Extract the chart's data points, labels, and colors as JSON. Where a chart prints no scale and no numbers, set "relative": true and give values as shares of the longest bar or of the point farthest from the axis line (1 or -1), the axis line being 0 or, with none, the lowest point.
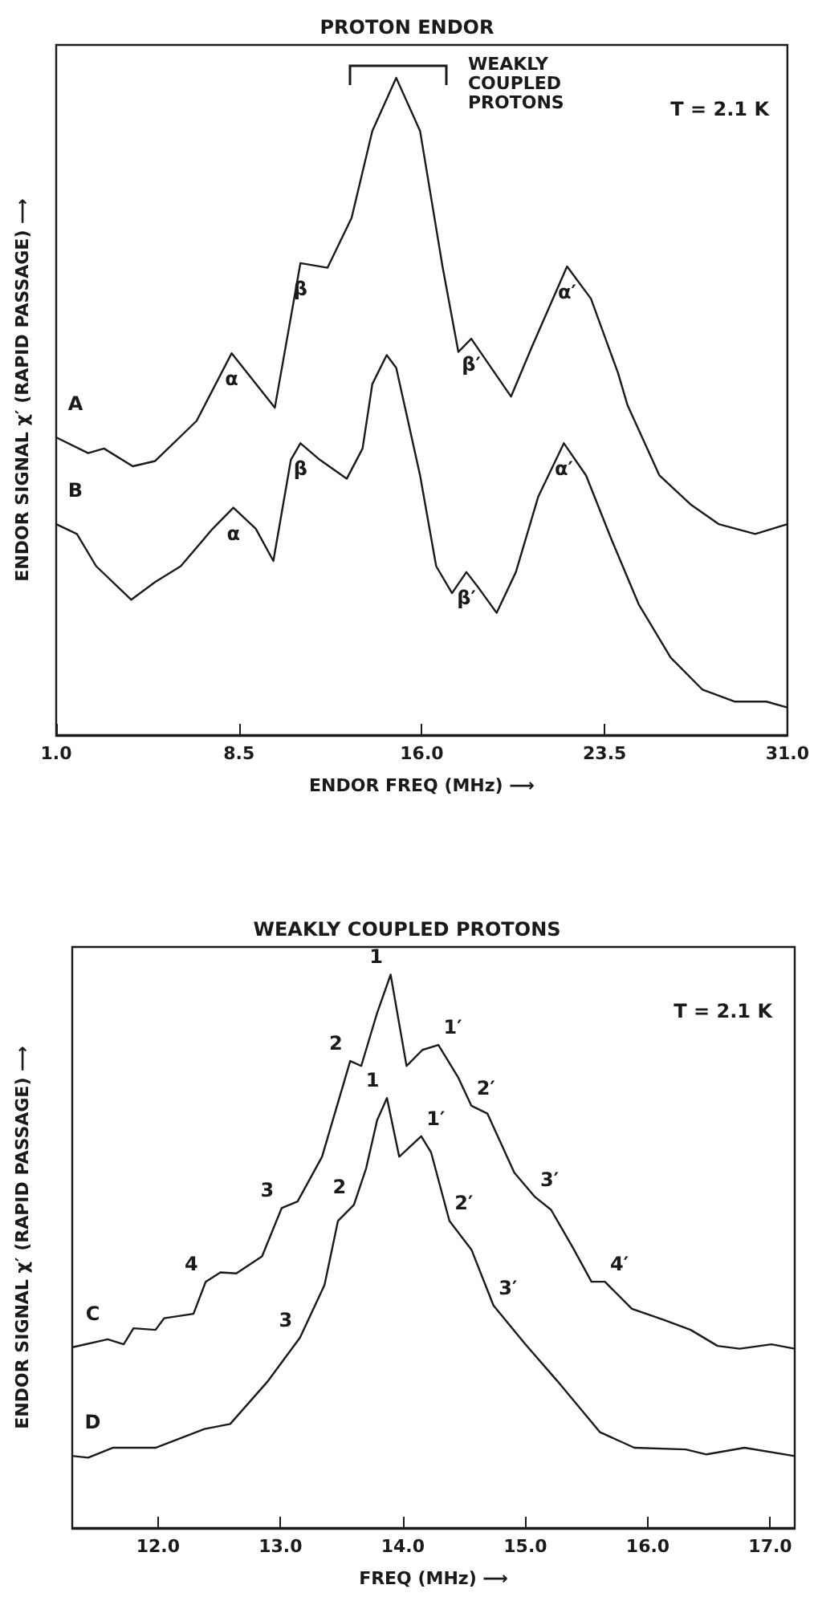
{
  "chart_data": [
    {
      "type": "line",
      "relative": true,
      "title": "PROTON ENDOR",
      "xlabel": "ENDOR FREQ (MHz) ⟶",
      "ylabel": "ENDOR SIGNAL χ′ (RAPID PASSAGE) ⟶",
      "xlim": [
        1.0,
        31.0
      ],
      "xticks": [
        {
          "value": 1.0,
          "label": "1.0"
        },
        {
          "value": 8.5,
          "label": "8.5"
        },
        {
          "value": 16.0,
          "label": "16.0"
        },
        {
          "value": 23.5,
          "label": "23.5"
        },
        {
          "value": 31.0,
          "label": "31.0"
        }
      ],
      "series": [
        {
          "name": "A",
          "color": "#1a1a1a",
          "x": [
            1.0,
            2.31,
            2.96,
            4.14,
            5.06,
            6.76,
            8.2,
            9.97,
            11.02,
            12.13,
            13.12,
            13.97,
            14.95,
            15.93,
            16.85,
            17.5,
            18.03,
            19.66,
            20.52,
            21.96,
            22.94,
            24.05,
            24.44,
            25.75,
            27.06,
            28.18,
            29.68,
            31.0
          ],
          "values": [
            0.453,
            0.429,
            0.436,
            0.409,
            0.417,
            0.478,
            0.581,
            0.498,
            0.718,
            0.711,
            0.787,
            0.919,
            1.0,
            0.919,
            0.713,
            0.583,
            0.603,
            0.515,
            0.591,
            0.713,
            0.664,
            0.551,
            0.502,
            0.395,
            0.35,
            0.321,
            0.306,
            0.321
          ]
        },
        {
          "name": "B",
          "color": "#1a1a1a",
          "x": [
            1.0,
            1.85,
            2.64,
            4.08,
            5.06,
            6.11,
            7.42,
            8.27,
            9.19,
            9.91,
            10.63,
            11.02,
            11.81,
            12.92,
            13.57,
            13.97,
            14.56,
            14.95,
            15.93,
            16.59,
            17.24,
            17.83,
            18.35,
            19.07,
            19.86,
            20.78,
            21.83,
            22.74,
            23.79,
            24.9,
            26.21,
            27.52,
            28.83,
            30.14,
            31.0
          ],
          "values": [
            0.321,
            0.306,
            0.257,
            0.206,
            0.233,
            0.257,
            0.314,
            0.346,
            0.314,
            0.265,
            0.419,
            0.444,
            0.419,
            0.39,
            0.436,
            0.534,
            0.578,
            0.559,
            0.395,
            0.257,
            0.216,
            0.248,
            0.223,
            0.186,
            0.248,
            0.363,
            0.444,
            0.395,
            0.297,
            0.199,
            0.118,
            0.069,
            0.051,
            0.051,
            0.042
          ]
        }
      ],
      "annotations": [
        {
          "text": "α",
          "x": 8.2,
          "y": 0.581
        },
        {
          "text": "β",
          "x": 11.02,
          "y": 0.718
        },
        {
          "text": "β′",
          "x": 18.03,
          "y": 0.603
        },
        {
          "text": "α′",
          "x": 21.96,
          "y": 0.713
        },
        {
          "text": "α",
          "x": 8.27,
          "y": 0.346
        },
        {
          "text": "β",
          "x": 11.02,
          "y": 0.444
        },
        {
          "text": "β′",
          "x": 17.83,
          "y": 0.248
        },
        {
          "text": "α′",
          "x": 21.83,
          "y": 0.444
        },
        "WEAKLY COUPLED PROTONS",
        "T = 2.1 K"
      ]
    },
    {
      "type": "line",
      "relative": true,
      "title": "WEAKLY COUPLED PROTONS",
      "xlabel": "FREQ (MHz) ⟶",
      "ylabel": "ENDOR SIGNAL χ′ (RAPID PASSAGE) ⟶",
      "xlim": [
        11.3,
        17.2
      ],
      "xticks": [
        {
          "value": 12.0,
          "label": "12.0"
        },
        {
          "value": 13.0,
          "label": "13.0"
        },
        {
          "value": 14.0,
          "label": "14.0"
        },
        {
          "value": 15.0,
          "label": "15.0"
        },
        {
          "value": 16.0,
          "label": "16.0"
        },
        {
          "value": 17.0,
          "label": "17.0"
        }
      ],
      "series": [
        {
          "name": "C",
          "color": "#1a1a1a",
          "x": [
            11.31,
            11.59,
            11.72,
            11.8,
            11.98,
            12.05,
            12.29,
            12.39,
            12.51,
            12.64,
            12.85,
            13.01,
            13.14,
            13.34,
            13.57,
            13.66,
            13.79,
            13.9,
            14.03,
            14.16,
            14.29,
            14.45,
            14.56,
            14.69,
            14.91,
            15.08,
            15.21,
            15.39,
            15.54,
            15.65,
            15.87,
            16.13,
            16.35,
            16.57,
            16.75,
            17.01,
            17.2
          ],
          "values": [
            0.327,
            0.341,
            0.332,
            0.361,
            0.358,
            0.379,
            0.387,
            0.445,
            0.462,
            0.46,
            0.491,
            0.578,
            0.59,
            0.671,
            0.844,
            0.835,
            0.931,
            1.0,
            0.835,
            0.864,
            0.873,
            0.815,
            0.763,
            0.749,
            0.642,
            0.598,
            0.575,
            0.506,
            0.445,
            0.445,
            0.396,
            0.376,
            0.358,
            0.329,
            0.324,
            0.332,
            0.324
          ]
        },
        {
          "name": "D",
          "color": "#1a1a1a",
          "x": [
            11.31,
            11.43,
            11.63,
            11.98,
            12.38,
            12.59,
            12.9,
            13.16,
            13.36,
            13.47,
            13.6,
            13.7,
            13.79,
            13.87,
            13.97,
            14.15,
            14.23,
            14.38,
            14.56,
            14.74,
            15.0,
            15.26,
            15.61,
            15.89,
            16.31,
            16.48,
            16.79,
            17.2
          ],
          "values": [
            0.13,
            0.127,
            0.145,
            0.145,
            0.179,
            0.188,
            0.266,
            0.344,
            0.439,
            0.555,
            0.584,
            0.65,
            0.737,
            0.777,
            0.671,
            0.708,
            0.679,
            0.555,
            0.503,
            0.402,
            0.332,
            0.266,
            0.173,
            0.145,
            0.142,
            0.133,
            0.145,
            0.13
          ]
        }
      ],
      "annotations": [
        {
          "text": "1",
          "x": 13.9,
          "y": 1.0
        },
        {
          "text": "2",
          "x": 13.57,
          "y": 0.844
        },
        {
          "text": "3",
          "x": 13.01,
          "y": 0.578
        },
        {
          "text": "4",
          "x": 12.39,
          "y": 0.445
        },
        {
          "text": "1′",
          "x": 14.29,
          "y": 0.873
        },
        {
          "text": "2′",
          "x": 14.56,
          "y": 0.763
        },
        {
          "text": "3′",
          "x": 15.08,
          "y": 0.598
        },
        {
          "text": "4′",
          "x": 15.65,
          "y": 0.445
        },
        {
          "text": "1",
          "x": 13.87,
          "y": 0.777
        },
        {
          "text": "1′",
          "x": 14.15,
          "y": 0.708
        },
        {
          "text": "2",
          "x": 13.6,
          "y": 0.584
        },
        {
          "text": "2′",
          "x": 14.38,
          "y": 0.555
        },
        {
          "text": "3",
          "x": 13.16,
          "y": 0.344
        },
        {
          "text": "3′",
          "x": 14.74,
          "y": 0.402
        },
        "T = 2.1 K"
      ]
    }
  ]
}
